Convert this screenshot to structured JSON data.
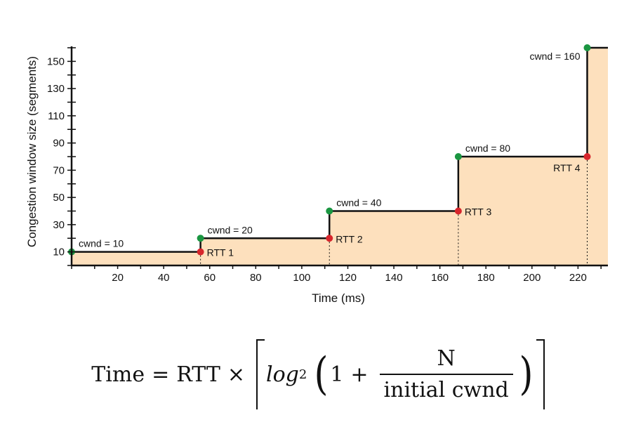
{
  "chart_data": {
    "type": "line",
    "subtype": "step-area",
    "xlabel": "Time (ms)",
    "ylabel": "Congestion window size (segments)",
    "x_ticks": [
      20,
      40,
      60,
      80,
      100,
      120,
      140,
      160,
      180,
      200,
      220
    ],
    "y_ticks": [
      10,
      30,
      50,
      70,
      90,
      110,
      130,
      150
    ],
    "xlim": [
      0,
      233
    ],
    "ylim": [
      0,
      160
    ],
    "steps": [
      {
        "x_start": 0,
        "x_end": 56,
        "cwnd": 10,
        "label": "cwnd = 10"
      },
      {
        "x_start": 56,
        "x_end": 112,
        "cwnd": 20,
        "label": "cwnd = 20"
      },
      {
        "x_start": 112,
        "x_end": 168,
        "cwnd": 40,
        "label": "cwnd = 40"
      },
      {
        "x_start": 168,
        "x_end": 224,
        "cwnd": 80,
        "label": "cwnd = 80"
      },
      {
        "x_start": 224,
        "x_end": 233,
        "cwnd": 160,
        "label": "cwnd = 160"
      }
    ],
    "rtt_markers": [
      {
        "x": 56,
        "y": 10,
        "label": "RTT 1"
      },
      {
        "x": 112,
        "y": 20,
        "label": "RTT 2"
      },
      {
        "x": 168,
        "y": 40,
        "label": "RTT 3"
      },
      {
        "x": 224,
        "y": 80,
        "label": "RTT 4"
      }
    ],
    "colors": {
      "fill": "#fde0bd",
      "line": "#111111",
      "start_point": "#1a9641",
      "rtt_point": "#d7262c"
    },
    "grid": false
  },
  "formula": {
    "lhs": "Time",
    "equals": "=",
    "rtt": "RTT",
    "times": "×",
    "log": "log",
    "log_base": "2",
    "one": "1",
    "plus": "+",
    "numerator": "N",
    "denominator": "initial cwnd"
  }
}
